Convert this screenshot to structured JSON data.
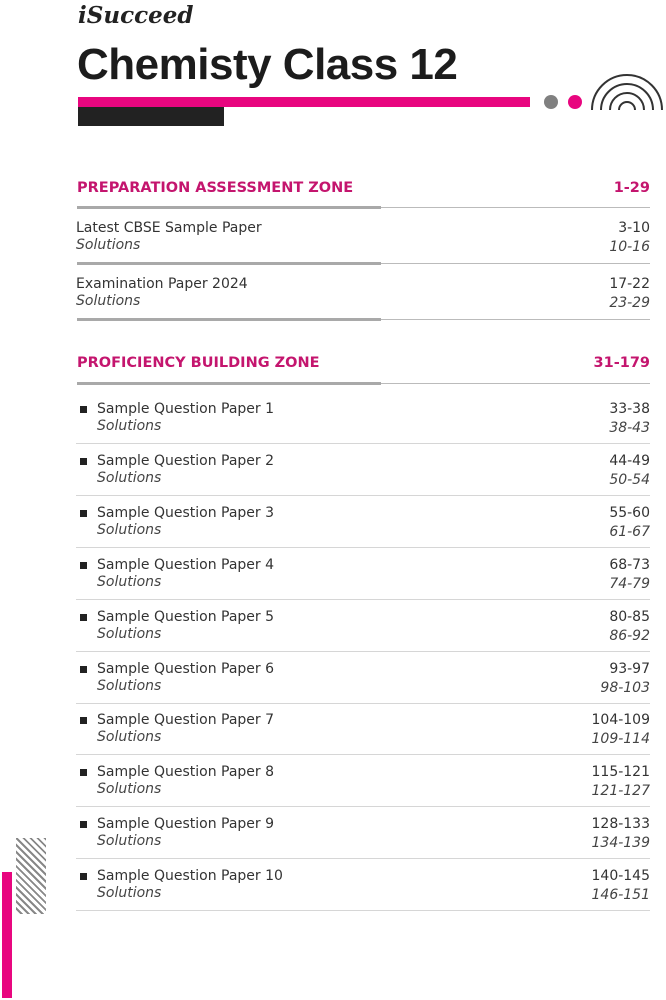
{
  "brand": "iSucceed",
  "title": "Chemisty Class 12",
  "colors": {
    "accent": "#e8067f",
    "dark": "#222222",
    "grey": "#808080"
  },
  "sections": [
    {
      "title": "PREPARATION ASSESSMENT ZONE",
      "pages": "1-29",
      "rows": [
        {
          "label": "Latest CBSE Sample Paper",
          "pages": "3-10",
          "sub": "Solutions",
          "sub_pages": "10-16"
        },
        {
          "label": "Examination Paper 2024",
          "pages": "17-22",
          "sub": "Solutions",
          "sub_pages": "23-29"
        }
      ]
    },
    {
      "title": "PROFICIENCY BUILDING ZONE",
      "pages": "31-179",
      "rows": [
        {
          "label": "Sample Question Paper 1",
          "pages": "33-38",
          "sub": "Solutions",
          "sub_pages": "38-43"
        },
        {
          "label": "Sample Question Paper 2",
          "pages": "44-49",
          "sub": "Solutions",
          "sub_pages": "50-54"
        },
        {
          "label": "Sample Question Paper 3",
          "pages": "55-60",
          "sub": "Solutions",
          "sub_pages": "61-67"
        },
        {
          "label": "Sample Question Paper 4",
          "pages": "68-73",
          "sub": "Solutions",
          "sub_pages": "74-79"
        },
        {
          "label": "Sample Question Paper 5",
          "pages": "80-85",
          "sub": "Solutions",
          "sub_pages": "86-92"
        },
        {
          "label": "Sample Question Paper 6",
          "pages": "93-97",
          "sub": "Solutions",
          "sub_pages": "98-103"
        },
        {
          "label": "Sample Question Paper 7",
          "pages": "104-109",
          "sub": "Solutions",
          "sub_pages": "109-114"
        },
        {
          "label": "Sample Question Paper 8",
          "pages": "115-121",
          "sub": "Solutions",
          "sub_pages": "121-127"
        },
        {
          "label": "Sample Question Paper 9",
          "pages": "128-133",
          "sub": "Solutions",
          "sub_pages": "134-139"
        },
        {
          "label": "Sample Question Paper 10",
          "pages": "140-145",
          "sub": "Solutions",
          "sub_pages": "146-151"
        }
      ]
    }
  ]
}
